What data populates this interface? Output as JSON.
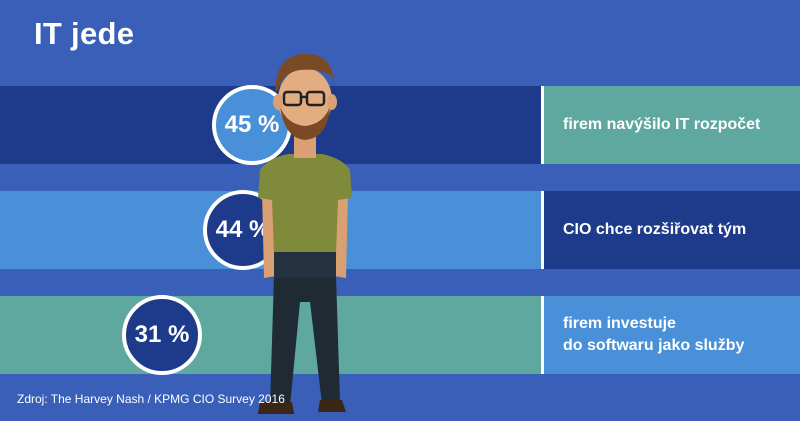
{
  "title": "IT jede",
  "source": "Zdroj: The Harvey Nash / KPMG CIO Survey 2016",
  "colors": {
    "background": "#3a5fb8",
    "navy": "#1e3a8a",
    "light_blue": "#4a90d9",
    "teal": "#5fa8a0",
    "white": "#ffffff"
  },
  "chart_data": {
    "type": "bar",
    "title": "IT jede",
    "categories": [
      "firem navýšilo IT rozpočet",
      "CIO chce rozšiřovat tým",
      "firem investuje\ndo softwaru jako služby"
    ],
    "values": [
      45,
      44,
      31
    ],
    "value_labels": [
      "45 %",
      "44 %",
      "31 %"
    ],
    "unit": "%",
    "bar_colors": [
      "#1e3a8a",
      "#4a90d9",
      "#5fa8a0"
    ],
    "label_colors": [
      "#5fa8a0",
      "#1e3a8a",
      "#4a90d9"
    ],
    "badge_colors": [
      "#4a90d9",
      "#1e3a8a",
      "#1e3a8a"
    ],
    "source": "Zdroj: The Harvey Nash / KPMG CIO Survey 2016"
  }
}
